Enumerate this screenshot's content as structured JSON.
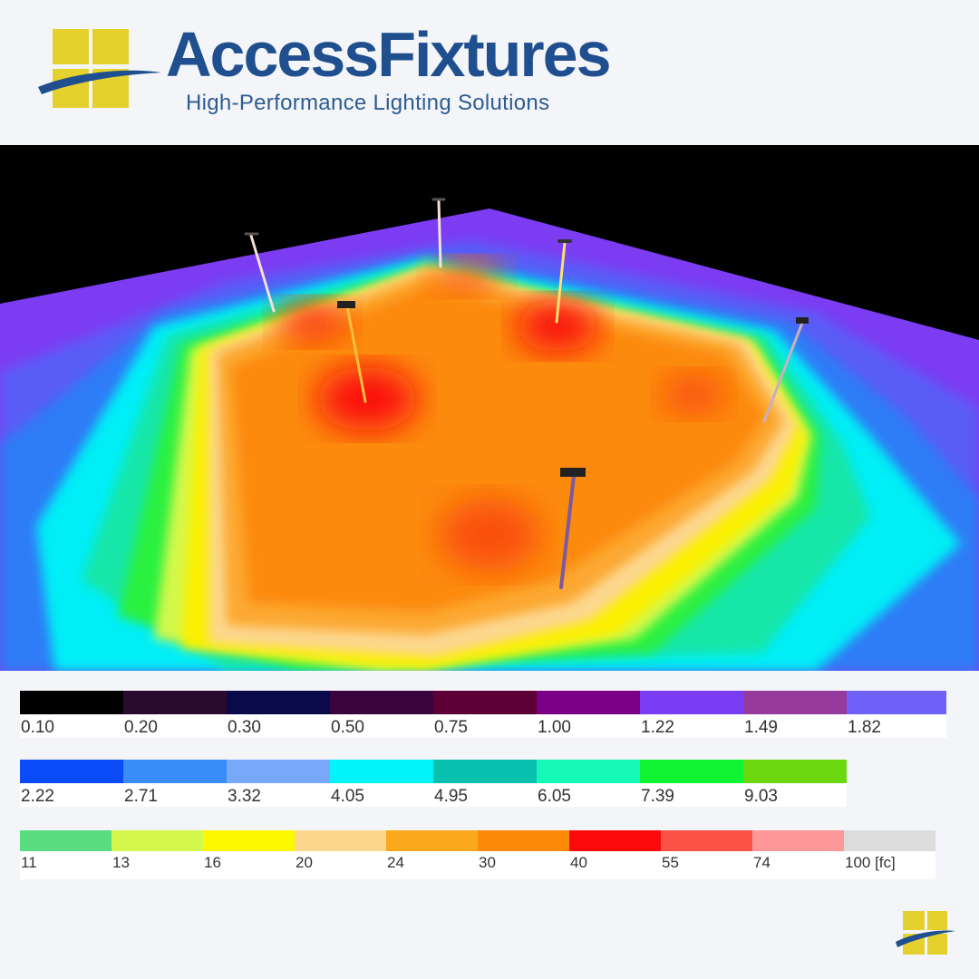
{
  "brand": {
    "name": "AccessFixtures",
    "tagline": "High-Performance Lighting Solutions",
    "colors": {
      "primary": "#1f4f8e",
      "accent": "#e5d12e"
    },
    "logo_icon": "window-pane-swoosh-logo-icon"
  },
  "scene": {
    "description_icon": "illuminance-false-color-render",
    "background": "#000000",
    "poles": 6
  },
  "legend": {
    "unit": "[fc]",
    "rows": [
      {
        "items": [
          {
            "label": "0.10",
            "color": "#000000"
          },
          {
            "label": "0.20",
            "color": "#2a0a2e"
          },
          {
            "label": "0.30",
            "color": "#0a0a4a"
          },
          {
            "label": "0.50",
            "color": "#3a053e"
          },
          {
            "label": "0.75",
            "color": "#5e0038"
          },
          {
            "label": "1.00",
            "color": "#7a0088"
          },
          {
            "label": "1.22",
            "color": "#7a3cf4"
          },
          {
            "label": "1.49",
            "color": "#963a9e"
          },
          {
            "label": "1.82",
            "color": "#6e62fa"
          }
        ]
      },
      {
        "items": [
          {
            "label": "2.22",
            "color": "#0a4cf8"
          },
          {
            "label": "2.71",
            "color": "#3a8cf8"
          },
          {
            "label": "3.32",
            "color": "#78a8fa"
          },
          {
            "label": "4.05",
            "color": "#00f4fa"
          },
          {
            "label": "4.95",
            "color": "#08c0ae"
          },
          {
            "label": "6.05",
            "color": "#14f8b8"
          },
          {
            "label": "7.39",
            "color": "#10f434"
          },
          {
            "label": "9.03",
            "color": "#6cd810"
          }
        ]
      },
      {
        "items": [
          {
            "label": "11",
            "color": "#5adc80"
          },
          {
            "label": "13",
            "color": "#d4f84c"
          },
          {
            "label": "16",
            "color": "#fbf800"
          },
          {
            "label": "20",
            "color": "#fcd88e"
          },
          {
            "label": "24",
            "color": "#fca81c"
          },
          {
            "label": "30",
            "color": "#fc8a08"
          },
          {
            "label": "40",
            "color": "#fa0a0a"
          },
          {
            "label": "55",
            "color": "#fa5244"
          },
          {
            "label": "74",
            "color": "#fc9898"
          },
          {
            "label": "100 [fc]",
            "color": "#dcdcdc"
          }
        ]
      }
    ]
  }
}
